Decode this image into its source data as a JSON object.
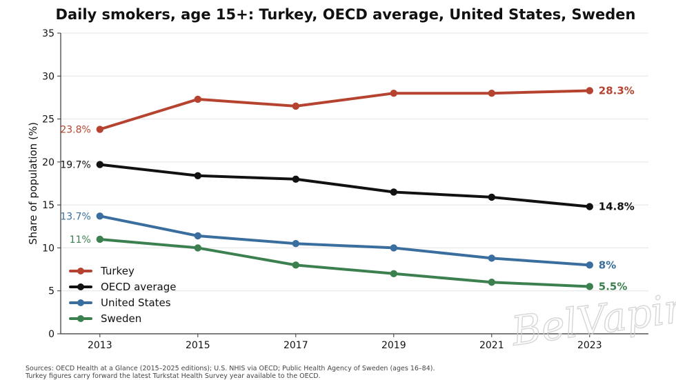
{
  "chart_data": {
    "type": "line",
    "title": "Daily smokers, age 15+: Turkey, OECD average, United States, Sweden",
    "xlabel": "",
    "ylabel": "Share of population (%)",
    "x": [
      2013,
      2015,
      2017,
      2019,
      2021,
      2023
    ],
    "xticks": [
      "2013",
      "2015",
      "2017",
      "2019",
      "2021",
      "2023"
    ],
    "ylim": [
      0,
      35
    ],
    "yticks": [
      "0",
      "5",
      "10",
      "15",
      "20",
      "25",
      "30",
      "35"
    ],
    "grid": "horizontal",
    "legend_position": "bottom-left",
    "series": [
      {
        "name": "Turkey",
        "color": "#b5432f",
        "values": [
          23.8,
          27.3,
          26.5,
          28.0,
          28.0,
          28.3
        ],
        "start_label": "23.8%",
        "end_label": "28.3%"
      },
      {
        "name": "OECD average",
        "color": "#111111",
        "values": [
          19.7,
          18.4,
          18.0,
          16.5,
          15.9,
          14.8
        ],
        "start_label": "19.7%",
        "end_label": "14.8%"
      },
      {
        "name": "United States",
        "color": "#3a6e9e",
        "values": [
          13.7,
          11.4,
          10.5,
          10.0,
          8.8,
          8.0
        ],
        "start_label": "13.7%",
        "end_label": "8%"
      },
      {
        "name": "Sweden",
        "color": "#3c8050",
        "values": [
          11.0,
          10.0,
          8.0,
          7.0,
          6.0,
          5.5
        ],
        "start_label": "11%",
        "end_label": "5.5%"
      }
    ]
  },
  "source": {
    "line1": "Sources: OECD Health at a Glance (2015–2025 editions); U.S. NHIS via OECD; Public Health Agency of Sweden (ages 16–84).",
    "line2": "Turkey figures carry forward the latest Turkstat Health Survey year available to the OECD."
  },
  "watermark": "BelVaping"
}
